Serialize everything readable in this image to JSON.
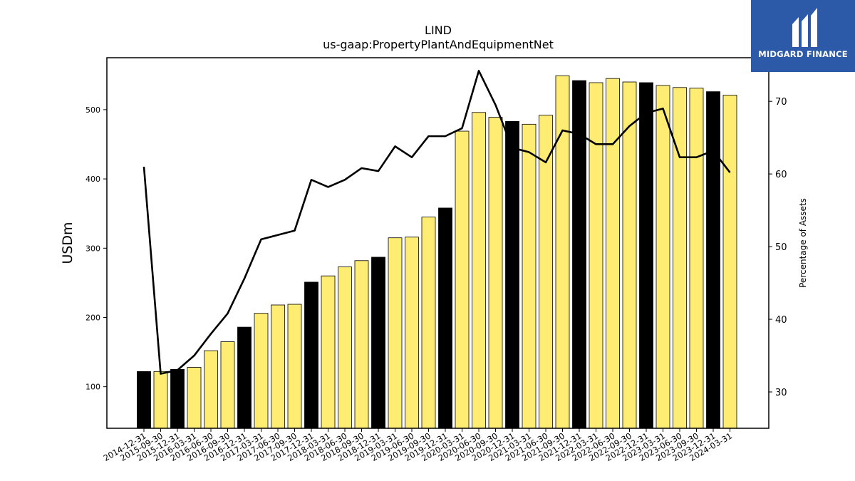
{
  "logo": {
    "text": "MIDGARD FINANCE"
  },
  "chart_data": {
    "type": "bar",
    "title": "LIND",
    "subtitle": "us-gaap:PropertyPlantAndEquipmentNet",
    "ylabel": "USDm",
    "y2label": "Percentage of Assets",
    "ylim": [
      40,
      575
    ],
    "y2lim": [
      25,
      76
    ],
    "yticks": [
      100,
      200,
      300,
      400,
      500
    ],
    "y2ticks": [
      30,
      40,
      50,
      60,
      70
    ],
    "categories": [
      "2014-12-31",
      "2015-09-30",
      "2015-12-31",
      "2016-03-31",
      "2016-06-30",
      "2016-09-30",
      "2016-12-31",
      "2017-03-31",
      "2017-06-30",
      "2017-09-30",
      "2017-12-31",
      "2018-03-31",
      "2018-06-30",
      "2018-09-30",
      "2018-12-31",
      "2019-03-31",
      "2019-06-30",
      "2019-09-30",
      "2019-12-31",
      "2020-03-31",
      "2020-06-30",
      "2020-09-30",
      "2020-12-31",
      "2021-03-31",
      "2021-06-30",
      "2021-09-30",
      "2021-12-31",
      "2022-03-31",
      "2022-06-30",
      "2022-09-30",
      "2022-12-31",
      "2023-03-31",
      "2023-06-30",
      "2023-09-30",
      "2023-12-31",
      "2024-03-31"
    ],
    "series": [
      {
        "kind": "bar",
        "values": [
          122,
          122,
          125,
          128,
          152,
          165,
          186,
          206,
          218,
          219,
          251,
          260,
          273,
          282,
          287,
          315,
          316,
          345,
          358,
          469,
          496,
          489,
          483,
          479,
          492,
          549,
          542,
          539,
          545,
          540,
          539,
          535,
          532,
          531,
          526,
          521
        ],
        "colors": [
          "#000000",
          "#ffec73",
          "#000000",
          "#ffec73",
          "#ffec73",
          "#ffec73",
          "#000000",
          "#ffec73",
          "#ffec73",
          "#ffec73",
          "#000000",
          "#ffec73",
          "#ffec73",
          "#ffec73",
          "#000000",
          "#ffec73",
          "#ffec73",
          "#ffec73",
          "#000000",
          "#ffec73",
          "#ffec73",
          "#ffec73",
          "#000000",
          "#ffec73",
          "#ffec73",
          "#ffec73",
          "#000000",
          "#ffec73",
          "#ffec73",
          "#ffec73",
          "#000000",
          "#ffec73",
          "#ffec73",
          "#ffec73",
          "#000000",
          "#ffec73"
        ]
      },
      {
        "kind": "line",
        "axis": "right",
        "color": "#000000",
        "values": [
          61,
          32.5,
          33,
          35,
          38,
          40.8,
          45.6,
          51,
          51.6,
          52.2,
          59.2,
          58.2,
          59.2,
          60.8,
          60.4,
          63.8,
          62.3,
          65.2,
          65.2,
          66.3,
          74.2,
          69.5,
          63.6,
          63,
          61.6,
          66,
          65.5,
          64.1,
          64.1,
          66.6,
          68.4,
          69,
          62.3,
          62.3,
          63.2,
          60.2
        ]
      }
    ]
  }
}
